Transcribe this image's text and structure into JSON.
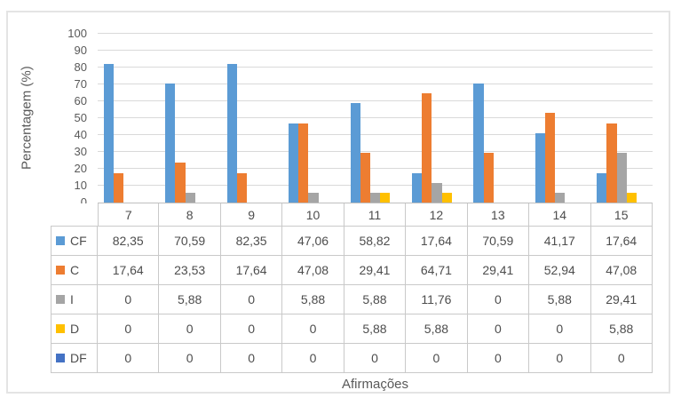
{
  "chart_data": {
    "type": "bar",
    "title": "",
    "xlabel": "Afirmações",
    "ylabel": "Percentagem (%)",
    "ylim": [
      0,
      100
    ],
    "ytick_step": 10,
    "yticks": [
      0,
      10,
      20,
      30,
      40,
      50,
      60,
      70,
      80,
      90,
      100
    ],
    "grid": true,
    "legend_position": "data-table-left",
    "categories": [
      "7",
      "8",
      "9",
      "10",
      "11",
      "12",
      "13",
      "14",
      "15"
    ],
    "series": [
      {
        "name": "CF",
        "color": "#5B9BD5",
        "values": [
          82.35,
          70.59,
          82.35,
          47.06,
          58.82,
          17.64,
          70.59,
          41.17,
          17.64
        ],
        "display": [
          "82,35",
          "70,59",
          "82,35",
          "47,06",
          "58,82",
          "17,64",
          "70,59",
          "41,17",
          "17,64"
        ]
      },
      {
        "name": "C",
        "color": "#ED7D31",
        "values": [
          17.64,
          23.53,
          17.64,
          47.08,
          29.41,
          64.71,
          29.41,
          52.94,
          47.08
        ],
        "display": [
          "17,64",
          "23,53",
          "17,64",
          "47,08",
          "29,41",
          "64,71",
          "29,41",
          "52,94",
          "47,08"
        ]
      },
      {
        "name": "I",
        "color": "#A5A5A5",
        "values": [
          0,
          5.88,
          0,
          5.88,
          5.88,
          11.76,
          0,
          5.88,
          29.41
        ],
        "display": [
          "0",
          "5,88",
          "0",
          "5,88",
          "5,88",
          "11,76",
          "0",
          "5,88",
          "29,41"
        ]
      },
      {
        "name": "D",
        "color": "#FFC000",
        "values": [
          0,
          0,
          0,
          0,
          5.88,
          5.88,
          0,
          0,
          5.88
        ],
        "display": [
          "0",
          "0",
          "0",
          "0",
          "5,88",
          "5,88",
          "0",
          "0",
          "5,88"
        ]
      },
      {
        "name": "DF",
        "color": "#4472C4",
        "values": [
          0,
          0,
          0,
          0,
          0,
          0,
          0,
          0,
          0
        ],
        "display": [
          "0",
          "0",
          "0",
          "0",
          "0",
          "0",
          "0",
          "0",
          "0"
        ]
      }
    ],
    "colors": {
      "gridline": "#D9D9D9",
      "axis_line": "#BFBFBF",
      "table_border": "#C9C9C9",
      "text": "#595959",
      "frame_border": "#E4E4E4"
    }
  }
}
